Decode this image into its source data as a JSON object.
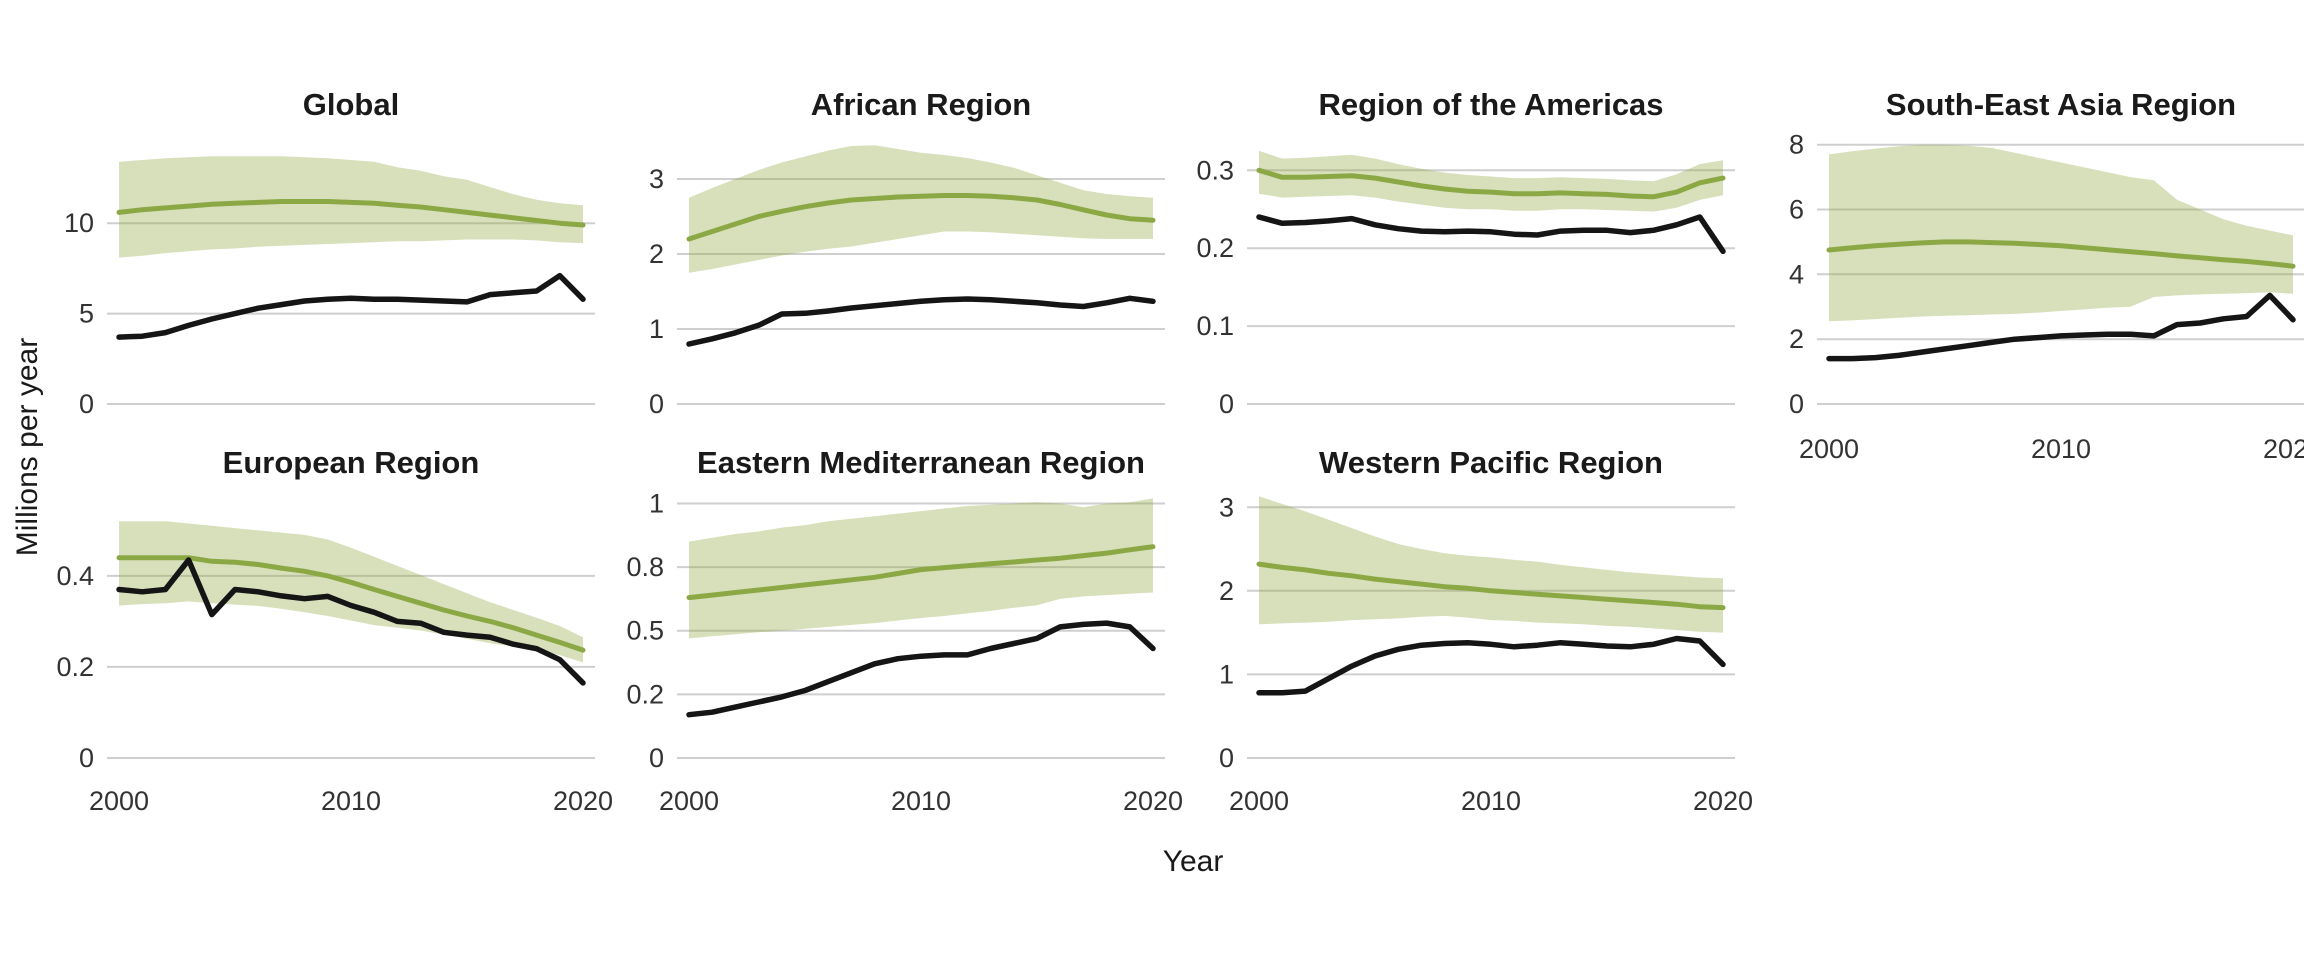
{
  "chart_data": {
    "type": "line",
    "title": "",
    "xlabel": "Year",
    "ylabel": "Millions per year",
    "x_start": 2000,
    "x_end": 2020,
    "x_tick_labels": [
      "2000",
      "2010",
      "2020"
    ],
    "x_tick_years": [
      2000,
      2010,
      2020
    ],
    "grid": "horizontal-only",
    "legend": "none",
    "colors": {
      "estimate_line": "#8ca845",
      "band_fill": "#8ca63c",
      "band_opacity": 0.35,
      "notified_line": "#151515",
      "gridline": "#cfcfcf",
      "tick_text": "#333333",
      "title_text": "#1a1a1a"
    },
    "series_names": [
      "estimated incidence (green, with uncertainty band)",
      "notifications (black)"
    ],
    "panels": [
      {
        "title": "Global",
        "row": 1,
        "col": 1,
        "show_x": false,
        "ytop": 15.6,
        "yticks": [
          {
            "v": 0,
            "label": "0"
          },
          {
            "v": 5,
            "label": "5"
          },
          {
            "v": 10,
            "label": "10"
          }
        ],
        "estimate": [
          10.6,
          10.75,
          10.85,
          10.95,
          11.05,
          11.1,
          11.15,
          11.2,
          11.2,
          11.2,
          11.15,
          11.1,
          11.0,
          10.9,
          10.75,
          10.6,
          10.45,
          10.3,
          10.15,
          10.0,
          9.9
        ],
        "upper": [
          13.4,
          13.5,
          13.6,
          13.65,
          13.7,
          13.7,
          13.7,
          13.7,
          13.65,
          13.6,
          13.5,
          13.4,
          13.1,
          12.9,
          12.6,
          12.4,
          12.0,
          11.6,
          11.3,
          11.1,
          11.0
        ],
        "lower": [
          8.1,
          8.2,
          8.35,
          8.45,
          8.55,
          8.6,
          8.7,
          8.75,
          8.8,
          8.85,
          8.9,
          8.95,
          9.0,
          9.0,
          9.05,
          9.1,
          9.1,
          9.1,
          9.05,
          8.95,
          8.9
        ],
        "notified": [
          3.7,
          3.75,
          3.95,
          4.35,
          4.7,
          5.0,
          5.3,
          5.5,
          5.7,
          5.8,
          5.85,
          5.8,
          5.8,
          5.75,
          5.7,
          5.65,
          6.05,
          6.15,
          6.25,
          7.1,
          5.8
        ]
      },
      {
        "title": "African Region",
        "row": 1,
        "col": 2,
        "show_x": false,
        "ytop": 3.76,
        "yticks": [
          {
            "v": 0,
            "label": "0"
          },
          {
            "v": 1,
            "label": "1"
          },
          {
            "v": 2,
            "label": "2"
          },
          {
            "v": 3,
            "label": "3"
          }
        ],
        "estimate": [
          2.2,
          2.3,
          2.4,
          2.5,
          2.57,
          2.63,
          2.68,
          2.72,
          2.74,
          2.76,
          2.77,
          2.78,
          2.78,
          2.77,
          2.75,
          2.72,
          2.66,
          2.59,
          2.52,
          2.47,
          2.45
        ],
        "upper": [
          2.75,
          2.88,
          3.0,
          3.12,
          3.22,
          3.3,
          3.38,
          3.44,
          3.45,
          3.4,
          3.35,
          3.32,
          3.28,
          3.22,
          3.15,
          3.05,
          2.95,
          2.85,
          2.8,
          2.77,
          2.75
        ],
        "lower": [
          1.75,
          1.8,
          1.86,
          1.92,
          1.98,
          2.03,
          2.07,
          2.1,
          2.15,
          2.2,
          2.25,
          2.3,
          2.3,
          2.29,
          2.27,
          2.25,
          2.23,
          2.21,
          2.2,
          2.2,
          2.2
        ],
        "notified": [
          0.8,
          0.87,
          0.95,
          1.05,
          1.2,
          1.21,
          1.24,
          1.28,
          1.31,
          1.34,
          1.37,
          1.39,
          1.4,
          1.39,
          1.37,
          1.35,
          1.32,
          1.3,
          1.35,
          1.41,
          1.37
        ]
      },
      {
        "title": "Region of the Americas",
        "row": 1,
        "col": 3,
        "show_x": false,
        "ytop": 0.362,
        "yticks": [
          {
            "v": 0,
            "label": "0"
          },
          {
            "v": 0.1,
            "label": "0.1"
          },
          {
            "v": 0.2,
            "label": "0.2"
          },
          {
            "v": 0.3,
            "label": "0.3"
          }
        ],
        "estimate": [
          0.3,
          0.291,
          0.291,
          0.292,
          0.293,
          0.29,
          0.285,
          0.28,
          0.276,
          0.273,
          0.272,
          0.27,
          0.27,
          0.271,
          0.27,
          0.269,
          0.267,
          0.266,
          0.272,
          0.284,
          0.29
        ],
        "upper": [
          0.325,
          0.315,
          0.316,
          0.318,
          0.32,
          0.315,
          0.308,
          0.302,
          0.297,
          0.294,
          0.292,
          0.29,
          0.29,
          0.291,
          0.29,
          0.289,
          0.287,
          0.286,
          0.295,
          0.308,
          0.313
        ],
        "lower": [
          0.27,
          0.265,
          0.266,
          0.267,
          0.268,
          0.265,
          0.26,
          0.256,
          0.252,
          0.25,
          0.25,
          0.248,
          0.248,
          0.25,
          0.25,
          0.249,
          0.248,
          0.247,
          0.252,
          0.262,
          0.268
        ],
        "notified": [
          0.24,
          0.232,
          0.233,
          0.235,
          0.238,
          0.23,
          0.225,
          0.222,
          0.221,
          0.222,
          0.221,
          0.218,
          0.217,
          0.222,
          0.223,
          0.223,
          0.22,
          0.223,
          0.23,
          0.24,
          0.196
        ]
      },
      {
        "title": "South-East Asia Region",
        "row": 1,
        "col": 4,
        "show_x": true,
        "ytop": 8.7,
        "yticks": [
          {
            "v": 0,
            "label": "0"
          },
          {
            "v": 2,
            "label": "2"
          },
          {
            "v": 4,
            "label": "4"
          },
          {
            "v": 6,
            "label": "6"
          },
          {
            "v": 8,
            "label": "8"
          }
        ],
        "estimate": [
          4.75,
          4.82,
          4.88,
          4.93,
          4.97,
          5.0,
          5.0,
          4.98,
          4.96,
          4.92,
          4.88,
          4.82,
          4.76,
          4.7,
          4.64,
          4.57,
          4.51,
          4.45,
          4.4,
          4.33,
          4.25
        ],
        "upper": [
          7.7,
          7.8,
          7.88,
          7.95,
          8.0,
          8.0,
          7.97,
          7.9,
          7.75,
          7.6,
          7.45,
          7.3,
          7.15,
          7.0,
          6.9,
          6.3,
          6.0,
          5.7,
          5.5,
          5.35,
          5.2
        ],
        "lower": [
          2.55,
          2.58,
          2.62,
          2.66,
          2.7,
          2.72,
          2.74,
          2.76,
          2.78,
          2.82,
          2.87,
          2.92,
          2.97,
          3.0,
          3.3,
          3.35,
          3.38,
          3.4,
          3.42,
          3.45,
          3.4
        ],
        "notified": [
          1.4,
          1.4,
          1.43,
          1.5,
          1.6,
          1.7,
          1.8,
          1.9,
          2.0,
          2.05,
          2.1,
          2.13,
          2.15,
          2.15,
          2.1,
          2.45,
          2.5,
          2.63,
          2.7,
          3.35,
          2.6
        ]
      },
      {
        "title": "European Region",
        "row": 2,
        "col": 1,
        "show_x": true,
        "ytop": 0.615,
        "yticks": [
          {
            "v": 0,
            "label": "0"
          },
          {
            "v": 0.2,
            "label": "0.2"
          },
          {
            "v": 0.4,
            "label": "0.4"
          }
        ],
        "estimate": [
          0.44,
          0.44,
          0.44,
          0.44,
          0.432,
          0.43,
          0.425,
          0.417,
          0.41,
          0.4,
          0.386,
          0.37,
          0.355,
          0.34,
          0.325,
          0.312,
          0.3,
          0.286,
          0.27,
          0.254,
          0.237
        ],
        "upper": [
          0.52,
          0.52,
          0.52,
          0.515,
          0.51,
          0.505,
          0.5,
          0.495,
          0.49,
          0.48,
          0.462,
          0.442,
          0.422,
          0.402,
          0.382,
          0.362,
          0.342,
          0.325,
          0.308,
          0.29,
          0.265
        ],
        "lower": [
          0.335,
          0.338,
          0.34,
          0.344,
          0.34,
          0.337,
          0.334,
          0.328,
          0.32,
          0.312,
          0.302,
          0.292,
          0.286,
          0.28,
          0.271,
          0.262,
          0.252,
          0.245,
          0.236,
          0.226,
          0.21
        ],
        "notified": [
          0.37,
          0.365,
          0.37,
          0.435,
          0.315,
          0.37,
          0.365,
          0.356,
          0.35,
          0.355,
          0.335,
          0.32,
          0.3,
          0.296,
          0.276,
          0.27,
          0.265,
          0.25,
          0.24,
          0.216,
          0.165
        ]
      },
      {
        "title": "Eastern Mediterranean Region",
        "row": 2,
        "col": 2,
        "show_x": true,
        "ytop": 1.1,
        "yticks": [
          {
            "v": 0,
            "label": "0"
          },
          {
            "v": 0.25,
            "label": "0.2"
          },
          {
            "v": 0.5,
            "label": "0.5"
          },
          {
            "v": 0.75,
            "label": "0.8"
          },
          {
            "v": 1,
            "label": "1"
          }
        ],
        "estimate": [
          0.63,
          0.64,
          0.65,
          0.66,
          0.67,
          0.68,
          0.69,
          0.7,
          0.71,
          0.725,
          0.74,
          0.748,
          0.755,
          0.763,
          0.77,
          0.778,
          0.785,
          0.795,
          0.805,
          0.818,
          0.83
        ],
        "upper": [
          0.85,
          0.865,
          0.88,
          0.89,
          0.905,
          0.915,
          0.93,
          0.94,
          0.95,
          0.96,
          0.97,
          0.98,
          0.99,
          0.995,
          1.0,
          1.005,
          1.0,
          0.985,
          1.0,
          1.005,
          1.02
        ],
        "lower": [
          0.47,
          0.478,
          0.486,
          0.494,
          0.5,
          0.508,
          0.515,
          0.523,
          0.53,
          0.54,
          0.55,
          0.558,
          0.568,
          0.578,
          0.59,
          0.6,
          0.625,
          0.635,
          0.64,
          0.645,
          0.65
        ],
        "notified": [
          0.17,
          0.18,
          0.2,
          0.22,
          0.24,
          0.265,
          0.3,
          0.335,
          0.37,
          0.39,
          0.4,
          0.405,
          0.405,
          0.43,
          0.45,
          0.47,
          0.515,
          0.525,
          0.53,
          0.515,
          0.43
        ]
      },
      {
        "title": "Western Pacific Region",
        "row": 2,
        "col": 3,
        "show_x": true,
        "ytop": 3.35,
        "yticks": [
          {
            "v": 0,
            "label": "0"
          },
          {
            "v": 1,
            "label": "1"
          },
          {
            "v": 2,
            "label": "2"
          },
          {
            "v": 3,
            "label": "3"
          }
        ],
        "estimate": [
          2.32,
          2.28,
          2.25,
          2.21,
          2.18,
          2.14,
          2.11,
          2.08,
          2.05,
          2.03,
          2.0,
          1.98,
          1.96,
          1.94,
          1.92,
          1.9,
          1.88,
          1.86,
          1.84,
          1.81,
          1.8
        ],
        "upper": [
          3.13,
          3.04,
          2.95,
          2.85,
          2.75,
          2.65,
          2.56,
          2.5,
          2.45,
          2.42,
          2.4,
          2.37,
          2.35,
          2.31,
          2.28,
          2.25,
          2.22,
          2.2,
          2.18,
          2.16,
          2.15
        ],
        "lower": [
          1.6,
          1.61,
          1.62,
          1.63,
          1.65,
          1.66,
          1.67,
          1.69,
          1.7,
          1.68,
          1.65,
          1.64,
          1.62,
          1.61,
          1.6,
          1.58,
          1.57,
          1.55,
          1.53,
          1.51,
          1.5
        ],
        "notified": [
          0.78,
          0.78,
          0.8,
          0.95,
          1.1,
          1.22,
          1.3,
          1.35,
          1.37,
          1.38,
          1.36,
          1.33,
          1.35,
          1.38,
          1.36,
          1.34,
          1.33,
          1.36,
          1.43,
          1.4,
          1.12
        ]
      }
    ]
  }
}
